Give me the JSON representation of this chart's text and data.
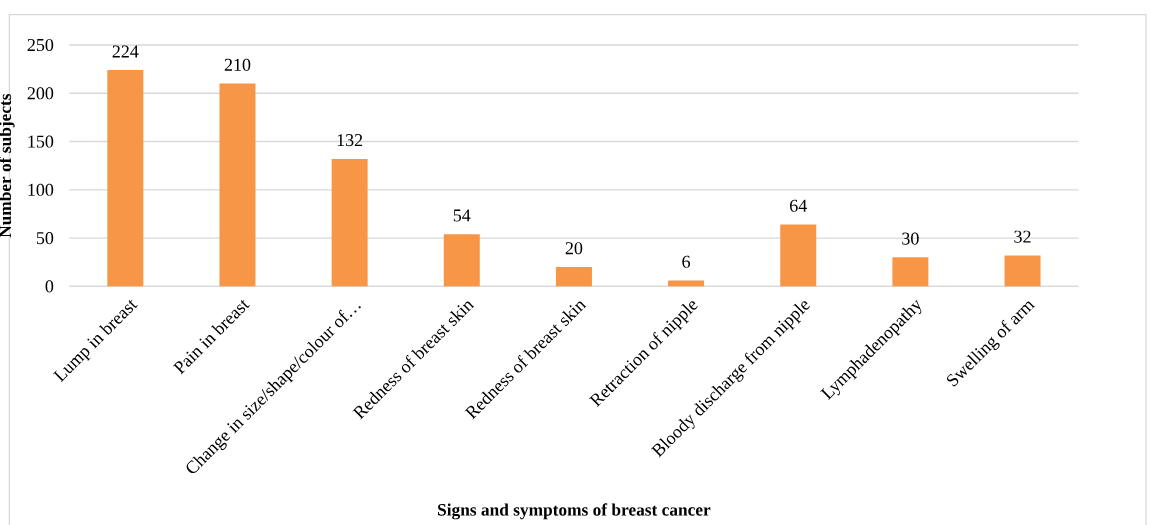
{
  "chart_data": {
    "type": "bar",
    "xlabel": "Signs and symptoms of breast cancer",
    "ylabel": "Number of subjects",
    "categories": [
      "Lump in breast",
      "Pain in breast",
      "Change in size/shape/colour of…",
      "Redness of breast skin",
      "Redness of breast skin",
      "Retraction of nipple",
      "Bloody discharge from nipple",
      "Lymphadenopathy",
      "Swelling of arm"
    ],
    "values": [
      224,
      210,
      132,
      54,
      20,
      6,
      64,
      30,
      32
    ],
    "color": "#f79646",
    "ylim": [
      0,
      250
    ],
    "yticks": [
      0,
      50,
      100,
      150,
      200,
      250
    ],
    "grid": "y",
    "data_labels": true
  }
}
